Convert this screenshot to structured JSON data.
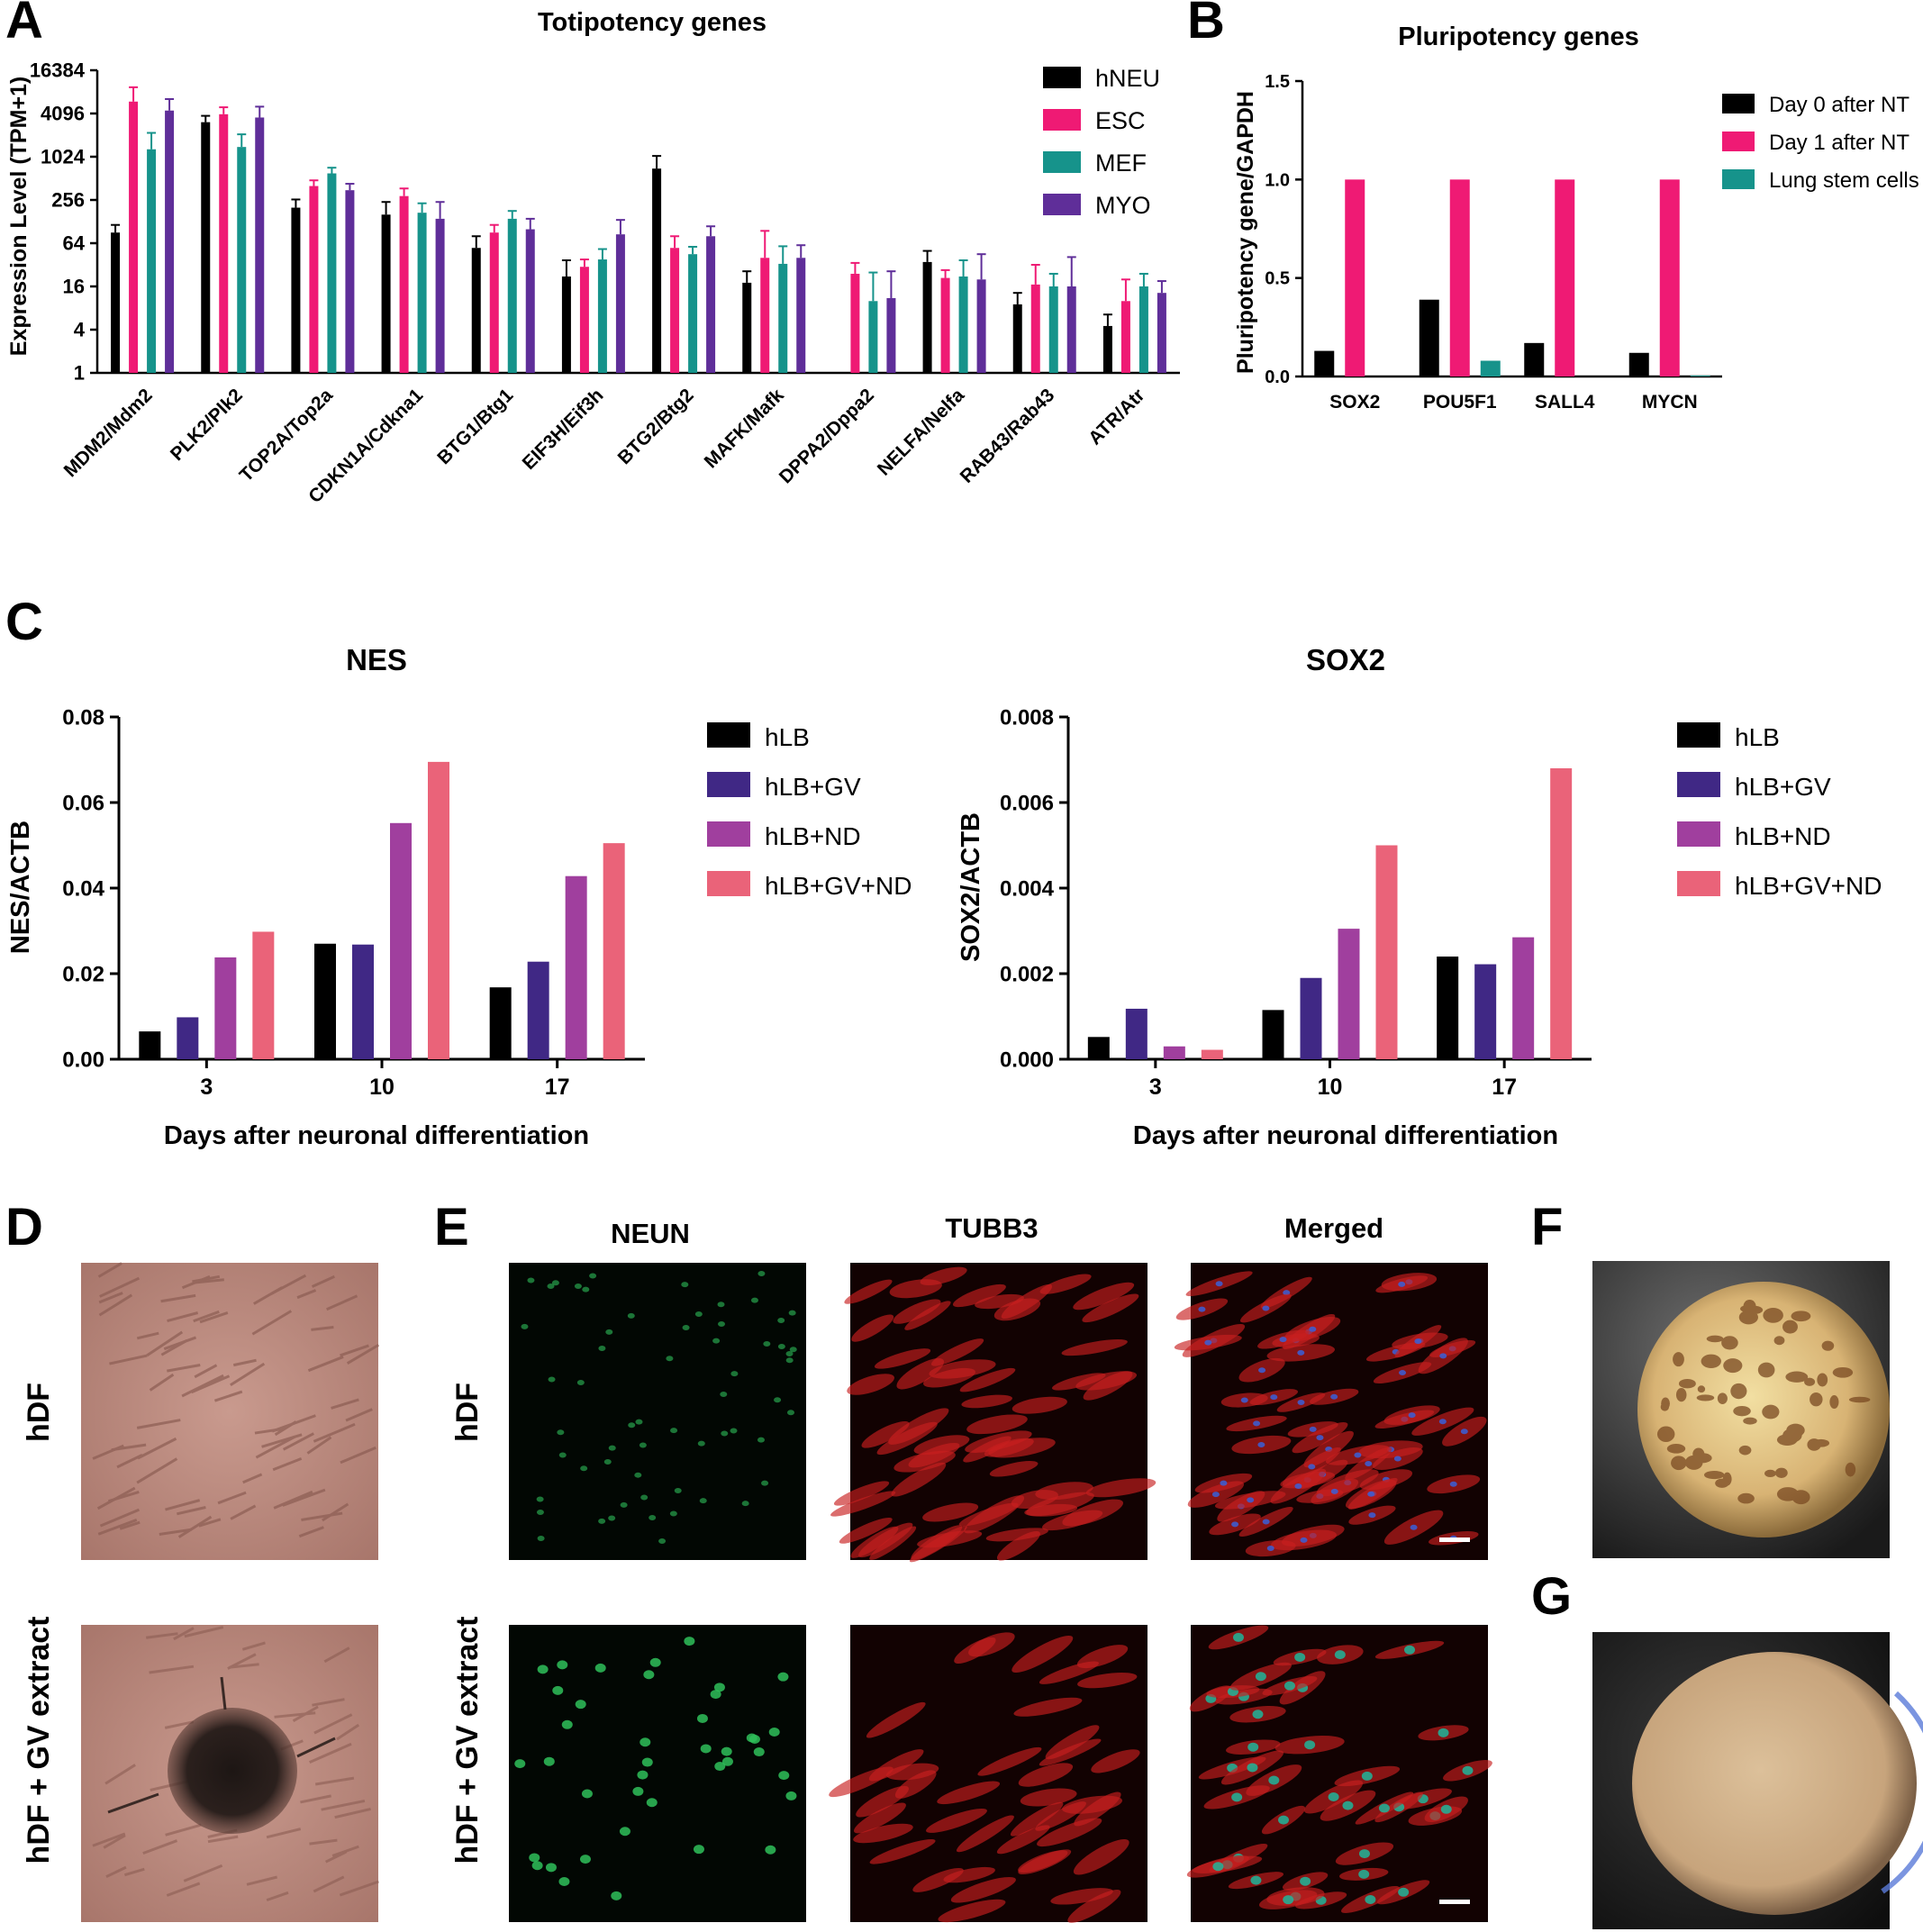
{
  "colors": {
    "black": "#000000",
    "pink": "#ef1a74",
    "teal": "#16938b",
    "purple": "#5f2e99",
    "indigo": "#402885",
    "violet": "#a03f9e",
    "salmon": "#ea6379"
  },
  "panel_letters": [
    "A",
    "B",
    "C",
    "D",
    "E",
    "F",
    "G"
  ],
  "chart_data": [
    {
      "id": "A",
      "type": "bar",
      "title": "Totipotency genes",
      "ylabel": "Expression Level (TPM+1)",
      "y_scale": "log2",
      "ylim": [
        1,
        16384
      ],
      "yticks": [
        1,
        4,
        16,
        64,
        256,
        1024,
        4096,
        16384
      ],
      "legend_position": "top-right",
      "error_bars": true,
      "categories": [
        "MDM2/Mdm2",
        "PLK2/Plk2",
        "TOP2A/Top2a",
        "CDKN1A/Cdkna1",
        "BTG1/Btg1",
        "EIF3H/Eif3h",
        "BTG2/Btg2",
        "MAFK/Mafk",
        "DPPA2/Dppa2",
        "NELFA/Nelfa",
        "RAB43/Rab43",
        "ATR/Atr"
      ],
      "series": [
        {
          "name": "hNEU",
          "color": "#000000",
          "values": [
            90,
            3100,
            200,
            160,
            55,
            22,
            700,
            18,
            1,
            35,
            9,
            4.5
          ],
          "errors": [
            25,
            700,
            60,
            80,
            25,
            15,
            350,
            8,
            0,
            15,
            4,
            2
          ]
        },
        {
          "name": "ESC",
          "color": "#ef1a74",
          "values": [
            6000,
            4000,
            400,
            290,
            90,
            30,
            55,
            40,
            24,
            21,
            17,
            10
          ],
          "errors": [
            3500,
            1000,
            80,
            80,
            25,
            8,
            25,
            55,
            10,
            6,
            15,
            10
          ]
        },
        {
          "name": "MEF",
          "color": "#16938b",
          "values": [
            1300,
            1400,
            600,
            170,
            140,
            38,
            45,
            33,
            10,
            22,
            16,
            16
          ],
          "errors": [
            900,
            700,
            120,
            60,
            40,
            15,
            12,
            25,
            15,
            15,
            8,
            8
          ]
        },
        {
          "name": "MYO",
          "color": "#5f2e99",
          "values": [
            4500,
            3600,
            350,
            140,
            100,
            85,
            80,
            40,
            11,
            20,
            16,
            13
          ],
          "errors": [
            2000,
            1500,
            80,
            100,
            40,
            50,
            30,
            20,
            15,
            25,
            25,
            6
          ]
        }
      ]
    },
    {
      "id": "B",
      "type": "bar",
      "title": "Pluripotency genes",
      "ylabel": "Pluripotency gene/GAPDH",
      "ylim": [
        0,
        1.5
      ],
      "yticks": [
        "0.0",
        "0.5",
        "1.0",
        "1.5"
      ],
      "legend_position": "top-right",
      "categories": [
        "SOX2",
        "POU5F1",
        "SALL4",
        "MYCN"
      ],
      "series": [
        {
          "name": "Day 0 after NT",
          "color": "#000000",
          "values": [
            0.13,
            0.39,
            0.17,
            0.12
          ]
        },
        {
          "name": "Day 1 after NT",
          "color": "#ef1a74",
          "values": [
            1.0,
            1.0,
            1.0,
            1.0
          ]
        },
        {
          "name": "Lung stem cells",
          "color": "#16938b",
          "values": [
            0.0,
            0.08,
            0.0,
            0.005
          ]
        }
      ]
    },
    {
      "id": "C1",
      "type": "bar",
      "title": "NES",
      "ylabel": "NES/ACTB",
      "xlabel": "Days after neuronal differentiation",
      "ylim": [
        0,
        0.08
      ],
      "yticks": [
        "0.00",
        "0.02",
        "0.04",
        "0.06",
        "0.08"
      ],
      "legend_position": "right",
      "categories": [
        "3",
        "10",
        "17"
      ],
      "series": [
        {
          "name": "hLB",
          "color": "#000000",
          "values": [
            0.0065,
            0.027,
            0.0168
          ]
        },
        {
          "name": "hLB+GV",
          "color": "#402885",
          "values": [
            0.0098,
            0.0268,
            0.0228
          ]
        },
        {
          "name": "hLB+ND",
          "color": "#a03f9e",
          "values": [
            0.0238,
            0.0552,
            0.0428
          ]
        },
        {
          "name": "hLB+GV+ND",
          "color": "#ea6379",
          "values": [
            0.0298,
            0.0695,
            0.0505
          ]
        }
      ]
    },
    {
      "id": "C2",
      "type": "bar",
      "title": "SOX2",
      "ylabel": "SOX2/ACTB",
      "xlabel": "Days after neuronal differentiation",
      "ylim": [
        0,
        0.008
      ],
      "yticks": [
        "0.000",
        "0.002",
        "0.004",
        "0.006",
        "0.008"
      ],
      "legend_position": "right",
      "categories": [
        "3",
        "10",
        "17"
      ],
      "series": [
        {
          "name": "hLB",
          "color": "#000000",
          "values": [
            0.00052,
            0.00115,
            0.0024
          ]
        },
        {
          "name": "hLB+GV",
          "color": "#402885",
          "values": [
            0.00118,
            0.0019,
            0.00222
          ]
        },
        {
          "name": "hLB+ND",
          "color": "#a03f9e",
          "values": [
            0.0003,
            0.00305,
            0.00285
          ]
        },
        {
          "name": "hLB+GV+ND",
          "color": "#ea6379",
          "values": [
            0.00022,
            0.005,
            0.0068
          ]
        }
      ]
    }
  ],
  "images": {
    "D": {
      "row_labels": [
        "hDF",
        "hDF + GV extract"
      ]
    },
    "E": {
      "column_titles": [
        "NEUN",
        "TUBB3",
        "Merged"
      ],
      "row_labels": [
        "hDF",
        "hDF + GV extract"
      ]
    }
  }
}
